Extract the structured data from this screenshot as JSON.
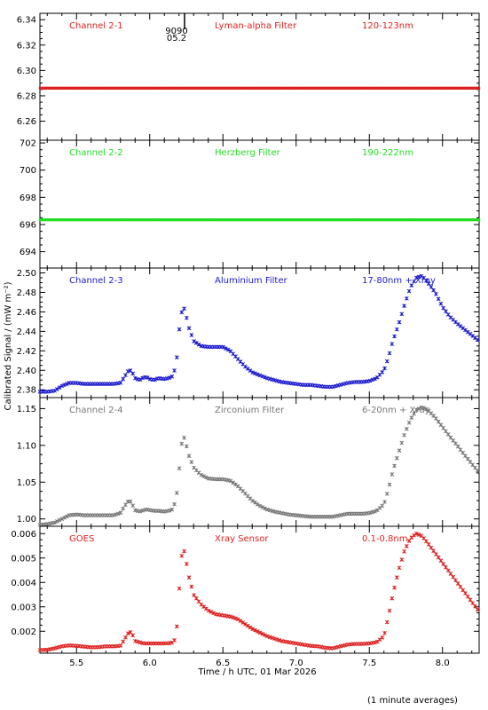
{
  "figure": {
    "ylabel": "Calibrated Signal / (mW m⁻²)",
    "xlabel": "Time / h UTC, 01 Mar 2026",
    "footnote": "(1 minute averages)",
    "marker_label_top": "9090",
    "marker_label_bottom": "05.2"
  },
  "chart_data": [
    {
      "type": "scatter",
      "panel": "Channel 2-1",
      "titles": [
        "Channel 2-1",
        "Lyman-alpha Filter",
        "120-123nm"
      ],
      "color": "#dd2020",
      "xlim": [
        5.25,
        8.25
      ],
      "ylim": [
        6.245,
        6.345
      ],
      "yticks": [
        6.26,
        6.28,
        6.3,
        6.32,
        6.34
      ],
      "ytick_labels": [
        "6.26",
        "6.28",
        "6.30",
        "6.32",
        "6.34"
      ],
      "x": [
        5.25,
        8.25
      ],
      "y": [
        6.286,
        6.286
      ]
    },
    {
      "type": "scatter",
      "panel": "Channel 2-2",
      "titles": [
        "Channel 2-2",
        "Herzberg Filter",
        "190-222nm"
      ],
      "color": "#22dd22",
      "xlim": [
        5.25,
        8.25
      ],
      "ylim": [
        692.8,
        702.2
      ],
      "yticks": [
        694,
        696,
        698,
        700,
        702
      ],
      "ytick_labels": [
        "694",
        "696",
        "698",
        "700",
        "702"
      ],
      "x": [
        5.25,
        8.25
      ],
      "y": [
        696.35,
        696.35
      ]
    },
    {
      "type": "scatter",
      "panel": "Channel 2-3",
      "titles": [
        "Channel 2-3",
        "Aluminium Filter",
        "17-80nm + Xray"
      ],
      "color": "#1a1acc",
      "xlim": [
        5.25,
        8.25
      ],
      "ylim": [
        2.372,
        2.505
      ],
      "yticks": [
        2.38,
        2.4,
        2.42,
        2.44,
        2.46,
        2.48,
        2.5
      ],
      "ytick_labels": [
        "2.38",
        "2.40",
        "2.42",
        "2.44",
        "2.46",
        "2.48",
        "2.50"
      ],
      "x": [
        5.25,
        5.3,
        5.35,
        5.4,
        5.45,
        5.5,
        5.55,
        5.6,
        5.65,
        5.7,
        5.75,
        5.8,
        5.83,
        5.86,
        5.88,
        5.9,
        5.93,
        5.96,
        5.98,
        6.0,
        6.03,
        6.06,
        6.1,
        6.15,
        6.18,
        6.2,
        6.22,
        6.24,
        6.26,
        6.3,
        6.35,
        6.4,
        6.45,
        6.5,
        6.55,
        6.6,
        6.65,
        6.7,
        6.75,
        6.8,
        6.85,
        6.9,
        6.95,
        7.0,
        7.05,
        7.1,
        7.15,
        7.2,
        7.25,
        7.3,
        7.35,
        7.4,
        7.45,
        7.5,
        7.55,
        7.6,
        7.63,
        7.66,
        7.7,
        7.74,
        7.78,
        7.82,
        7.86,
        7.9,
        7.95,
        8.0,
        8.05,
        8.1,
        8.15,
        8.2,
        8.25
      ],
      "y": [
        2.378,
        2.378,
        2.379,
        2.384,
        2.387,
        2.387,
        2.386,
        2.386,
        2.386,
        2.386,
        2.386,
        2.387,
        2.394,
        2.401,
        2.398,
        2.392,
        2.39,
        2.393,
        2.393,
        2.391,
        2.39,
        2.392,
        2.391,
        2.393,
        2.404,
        2.44,
        2.461,
        2.464,
        2.447,
        2.43,
        2.425,
        2.424,
        2.424,
        2.424,
        2.42,
        2.412,
        2.404,
        2.398,
        2.395,
        2.392,
        2.39,
        2.388,
        2.387,
        2.386,
        2.385,
        2.385,
        2.384,
        2.383,
        2.383,
        2.385,
        2.387,
        2.388,
        2.388,
        2.389,
        2.392,
        2.4,
        2.413,
        2.43,
        2.447,
        2.467,
        2.485,
        2.495,
        2.497,
        2.49,
        2.48,
        2.465,
        2.455,
        2.448,
        2.442,
        2.436,
        2.43
      ]
    },
    {
      "type": "scatter",
      "panel": "Channel 2-4",
      "titles": [
        "Channel 2-4",
        "Zirconium Filter",
        "6-20nm + Xray"
      ],
      "color": "#777777",
      "xlim": [
        5.25,
        8.25
      ],
      "ylim": [
        0.99,
        1.165
      ],
      "yticks": [
        1.0,
        1.05,
        1.1,
        1.15
      ],
      "ytick_labels": [
        "1.00",
        "1.05",
        "1.10",
        "1.15"
      ],
      "x": [
        5.25,
        5.3,
        5.35,
        5.4,
        5.45,
        5.5,
        5.55,
        5.6,
        5.65,
        5.7,
        5.75,
        5.8,
        5.83,
        5.86,
        5.88,
        5.9,
        5.93,
        5.96,
        5.98,
        6.0,
        6.03,
        6.06,
        6.1,
        6.15,
        6.18,
        6.2,
        6.22,
        6.24,
        6.26,
        6.3,
        6.35,
        6.4,
        6.45,
        6.5,
        6.55,
        6.6,
        6.65,
        6.7,
        6.75,
        6.8,
        6.85,
        6.9,
        6.95,
        7.0,
        7.05,
        7.1,
        7.15,
        7.2,
        7.25,
        7.3,
        7.35,
        7.4,
        7.45,
        7.5,
        7.55,
        7.6,
        7.63,
        7.66,
        7.7,
        7.74,
        7.78,
        7.82,
        7.86,
        7.9,
        7.95,
        8.0,
        8.05,
        8.1,
        8.15,
        8.2,
        8.25
      ],
      "y": [
        0.992,
        0.993,
        0.995,
        1.0,
        1.005,
        1.006,
        1.005,
        1.005,
        1.005,
        1.005,
        1.005,
        1.008,
        1.018,
        1.026,
        1.02,
        1.012,
        1.01,
        1.012,
        1.013,
        1.012,
        1.011,
        1.011,
        1.01,
        1.012,
        1.025,
        1.065,
        1.105,
        1.112,
        1.09,
        1.07,
        1.06,
        1.055,
        1.054,
        1.054,
        1.052,
        1.045,
        1.035,
        1.025,
        1.018,
        1.013,
        1.01,
        1.008,
        1.006,
        1.005,
        1.004,
        1.003,
        1.003,
        1.003,
        1.003,
        1.005,
        1.007,
        1.007,
        1.007,
        1.008,
        1.011,
        1.02,
        1.04,
        1.065,
        1.09,
        1.115,
        1.135,
        1.148,
        1.152,
        1.148,
        1.138,
        1.125,
        1.112,
        1.1,
        1.087,
        1.075,
        1.063
      ]
    },
    {
      "type": "scatter",
      "panel": "GOES",
      "titles": [
        "GOES",
        "Xray Sensor",
        "0.1-0.8nm"
      ],
      "color": "#dd2020",
      "xlim": [
        5.25,
        8.25
      ],
      "ylim": [
        0.0011,
        0.0063
      ],
      "yticks": [
        0.002,
        0.003,
        0.004,
        0.005,
        0.006
      ],
      "ytick_labels": [
        "0.002",
        "0.003",
        "0.004",
        "0.005",
        "0.006"
      ],
      "x": [
        5.25,
        5.3,
        5.35,
        5.4,
        5.45,
        5.5,
        5.55,
        5.6,
        5.65,
        5.7,
        5.75,
        5.8,
        5.83,
        5.86,
        5.88,
        5.9,
        5.93,
        5.96,
        5.98,
        6.0,
        6.03,
        6.06,
        6.1,
        6.15,
        6.18,
        6.2,
        6.22,
        6.24,
        6.26,
        6.3,
        6.35,
        6.4,
        6.45,
        6.5,
        6.55,
        6.6,
        6.65,
        6.7,
        6.75,
        6.8,
        6.85,
        6.9,
        6.95,
        7.0,
        7.05,
        7.1,
        7.15,
        7.2,
        7.25,
        7.3,
        7.35,
        7.4,
        7.45,
        7.5,
        7.55,
        7.6,
        7.63,
        7.66,
        7.7,
        7.74,
        7.78,
        7.82,
        7.86,
        7.9,
        7.95,
        8.0,
        8.05,
        8.1,
        8.15,
        8.2,
        8.25
      ],
      "y": [
        0.00123,
        0.00124,
        0.0013,
        0.00138,
        0.00142,
        0.0014,
        0.00137,
        0.00134,
        0.00135,
        0.00138,
        0.00138,
        0.0014,
        0.0017,
        0.002,
        0.0019,
        0.0016,
        0.00155,
        0.0015,
        0.0015,
        0.0015,
        0.0015,
        0.0015,
        0.0015,
        0.00152,
        0.0017,
        0.0036,
        0.0052,
        0.0053,
        0.0044,
        0.0035,
        0.0031,
        0.00285,
        0.0027,
        0.00265,
        0.0026,
        0.0025,
        0.0023,
        0.0021,
        0.00195,
        0.0018,
        0.0017,
        0.0016,
        0.00155,
        0.0015,
        0.00145,
        0.0014,
        0.00138,
        0.00132,
        0.0013,
        0.00138,
        0.00145,
        0.00148,
        0.00148,
        0.0015,
        0.00155,
        0.0018,
        0.0026,
        0.0035,
        0.0045,
        0.0053,
        0.0058,
        0.006,
        0.0059,
        0.0056,
        0.0052,
        0.0048,
        0.0044,
        0.004,
        0.0036,
        0.0032,
        0.0028
      ]
    }
  ]
}
